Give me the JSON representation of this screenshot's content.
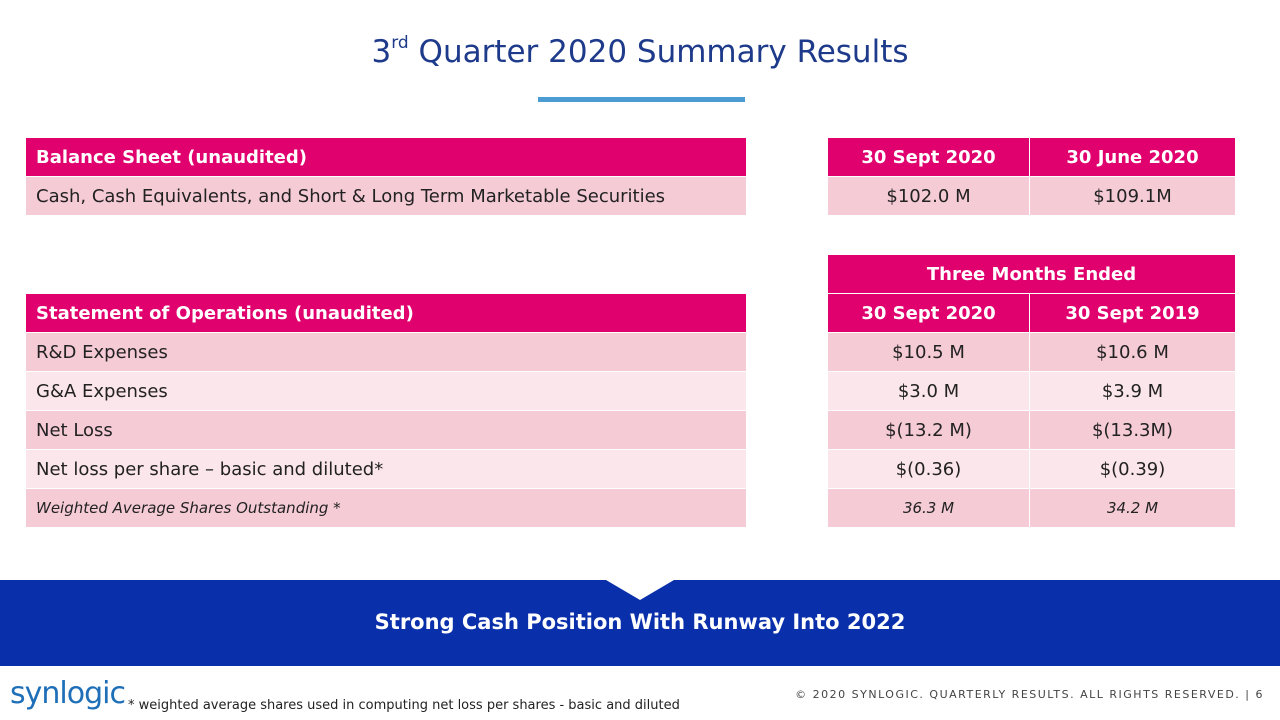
{
  "title": {
    "prefix": "3",
    "sup": "rd",
    "rest": " Quarter 2020 Summary Results"
  },
  "balance_sheet": {
    "header": "Balance Sheet (unaudited)",
    "col1": "30 Sept 2020",
    "col2": "30 June 2020",
    "row": {
      "label": "Cash, Cash Equivalents, and Short & Long Term Marketable Securities",
      "v1": "$102.0 M",
      "v2": "$109.1M"
    }
  },
  "operations": {
    "group_header": "Three Months Ended",
    "header": "Statement of Operations (unaudited)",
    "col1": "30 Sept 2020",
    "col2": "30 Sept  2019",
    "rows": [
      {
        "label": "R&D Expenses",
        "v1": "$10.5 M",
        "v2": "$10.6 M"
      },
      {
        "label": "G&A Expenses",
        "v1": "$3.0 M",
        "v2": "$3.9 M"
      },
      {
        "label": "Net Loss",
        "v1": "$(13.2 M)",
        "v2": "$(13.3M)"
      },
      {
        "label": "Net loss per share – basic and diluted*",
        "v1": "$(0.36)",
        "v2": "$(0.39)"
      },
      {
        "label": "Weighted Average Shares Outstanding *",
        "v1": "36.3 M",
        "v2": "34.2 M"
      }
    ]
  },
  "banner": "Strong Cash Position With Runway Into 2022",
  "logo": "synlogic",
  "footnote": "* weighted average shares used in computing net loss per shares - basic and diluted",
  "copyright": "© 2020 SYNLOGIC. QUARTERLY RESULTS. ALL RIGHTS RESERVED.  |  6",
  "colors": {
    "header": "#e0006e",
    "row_dark": "#f5cbd6",
    "row_light": "#fbe6eb",
    "banner": "#0a2faa",
    "title": "#1e3a8a"
  }
}
